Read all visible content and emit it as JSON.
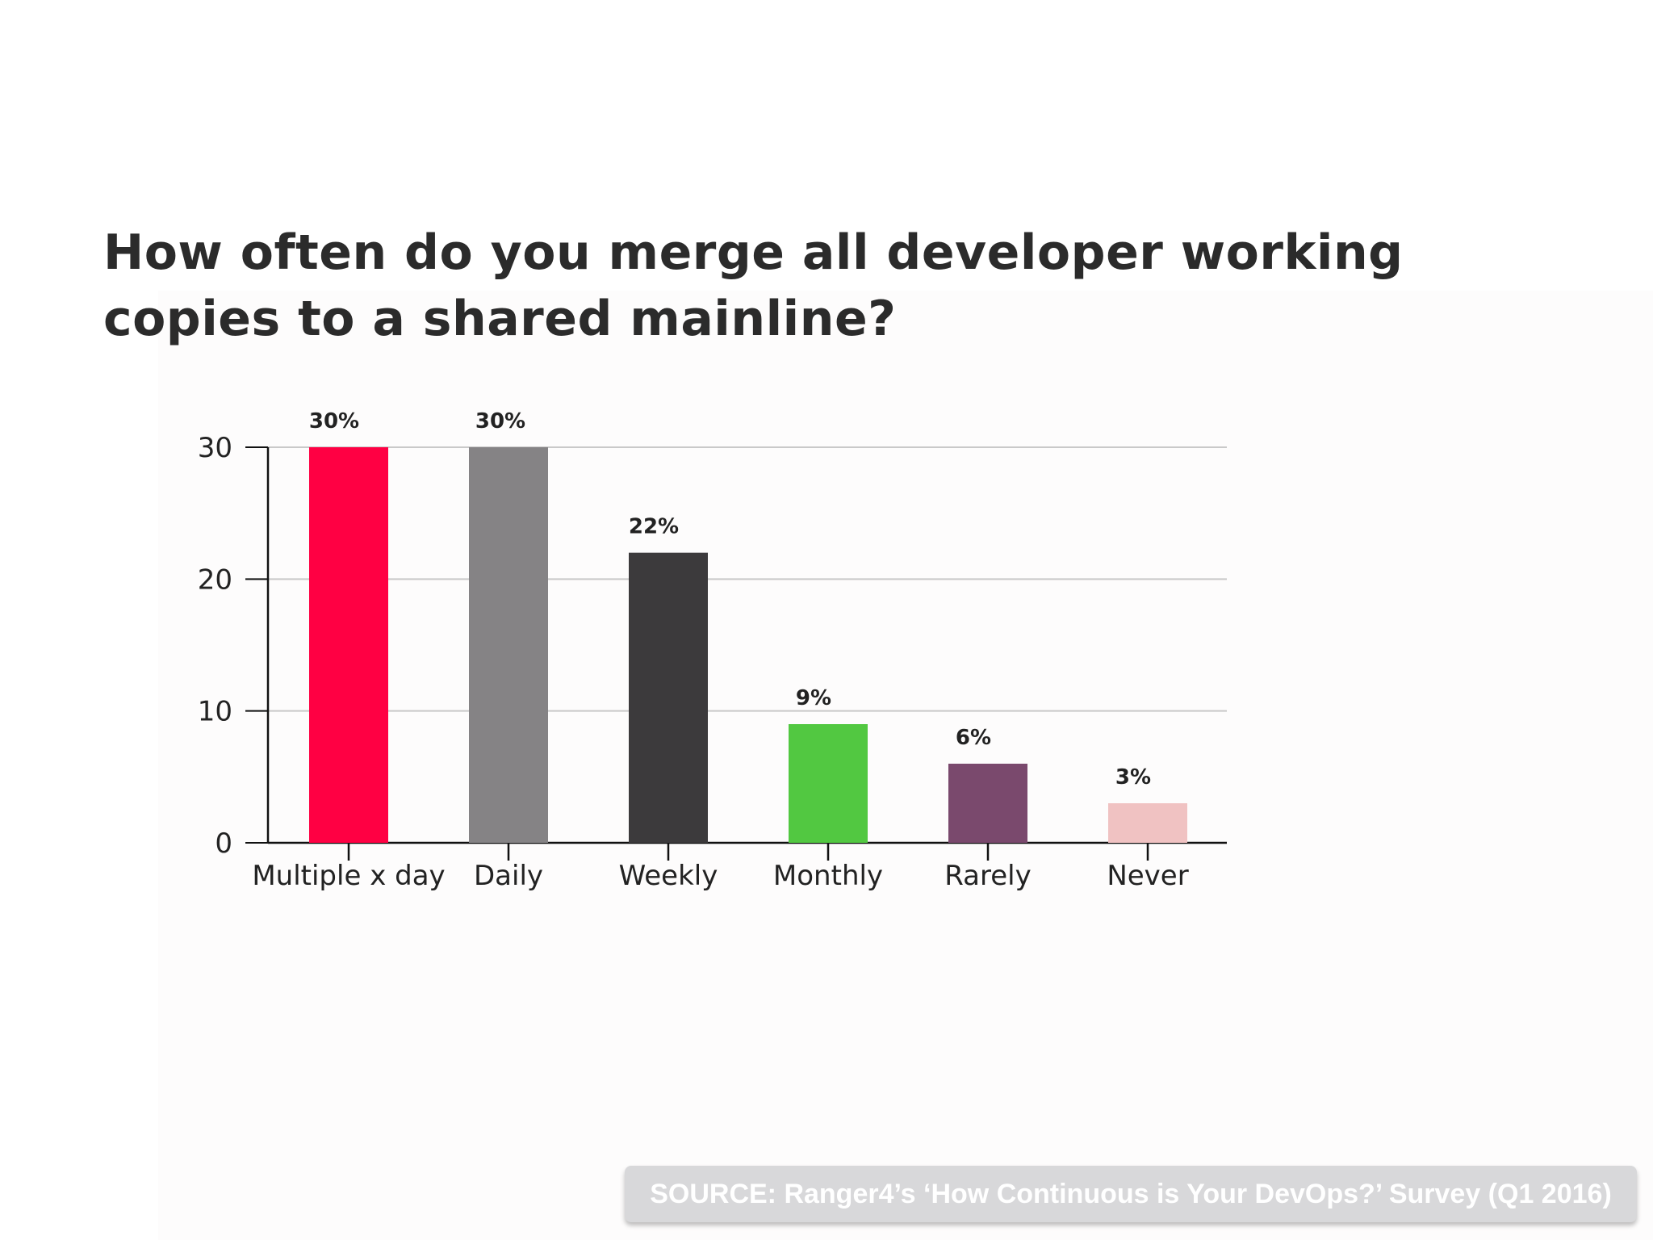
{
  "chart_data": {
    "type": "bar",
    "title": "How often do you merge all developer working copies to a shared mainline?",
    "categories": [
      "Multiple x day",
      "Daily",
      "Weekly",
      "Monthly",
      "Rarely",
      "Never"
    ],
    "values": [
      30,
      30,
      22,
      9,
      6,
      3
    ],
    "data_labels": [
      "30%",
      "30%",
      "22%",
      "9%",
      "6%",
      "3%"
    ],
    "colors": [
      "#ff0043",
      "#858385",
      "#3c3a3c",
      "#52c841",
      "#7a496d",
      "#f0c2c2"
    ],
    "ylim": [
      0,
      30
    ],
    "yticks": [
      0,
      10,
      20,
      30
    ],
    "ytick_labels": [
      "0",
      "10",
      "20",
      "30"
    ],
    "grid": true,
    "xlabel": "",
    "ylabel": ""
  },
  "source": "SOURCE: Ranger4’s ‘How Continuous is Your DevOps?’ Survey (Q1 2016)"
}
